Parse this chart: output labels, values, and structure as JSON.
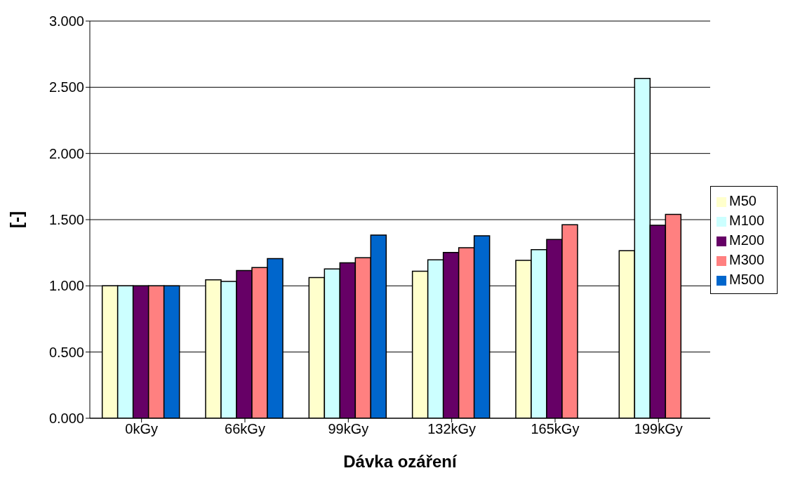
{
  "chart_data": {
    "type": "bar",
    "xlabel": "Dávka ozáření",
    "ylabel": "[-]",
    "categories": [
      "0kGy",
      "66kGy",
      "99kGy",
      "132kGy",
      "165kGy",
      "199kGy"
    ],
    "series": [
      {
        "name": "M50",
        "color": "#ffffcc",
        "values": [
          1.0,
          1.045,
          1.063,
          1.11,
          1.192,
          1.265
        ]
      },
      {
        "name": "M100",
        "color": "#ccffff",
        "values": [
          1.0,
          1.033,
          1.127,
          1.197,
          1.274,
          2.567
        ]
      },
      {
        "name": "M200",
        "color": "#660066",
        "values": [
          1.0,
          1.116,
          1.174,
          1.252,
          1.35,
          1.457
        ]
      },
      {
        "name": "M300",
        "color": "#ff8080",
        "values": [
          1.0,
          1.138,
          1.212,
          1.288,
          1.462,
          1.54
        ]
      },
      {
        "name": "M500",
        "color": "#0066cc",
        "values": [
          1.0,
          1.206,
          1.384,
          1.378,
          null,
          null
        ]
      }
    ],
    "ylim": [
      0,
      3
    ],
    "yticks": [
      {
        "value": 0,
        "label": "0.000"
      },
      {
        "value": 0.5,
        "label": "0.500"
      },
      {
        "value": 1,
        "label": "1.000"
      },
      {
        "value": 1.5,
        "label": "1.500"
      },
      {
        "value": 2,
        "label": "2.000"
      },
      {
        "value": 2.5,
        "label": "2.500"
      },
      {
        "value": 3,
        "label": "3.000"
      }
    ],
    "grid": "y",
    "legend": "right"
  }
}
